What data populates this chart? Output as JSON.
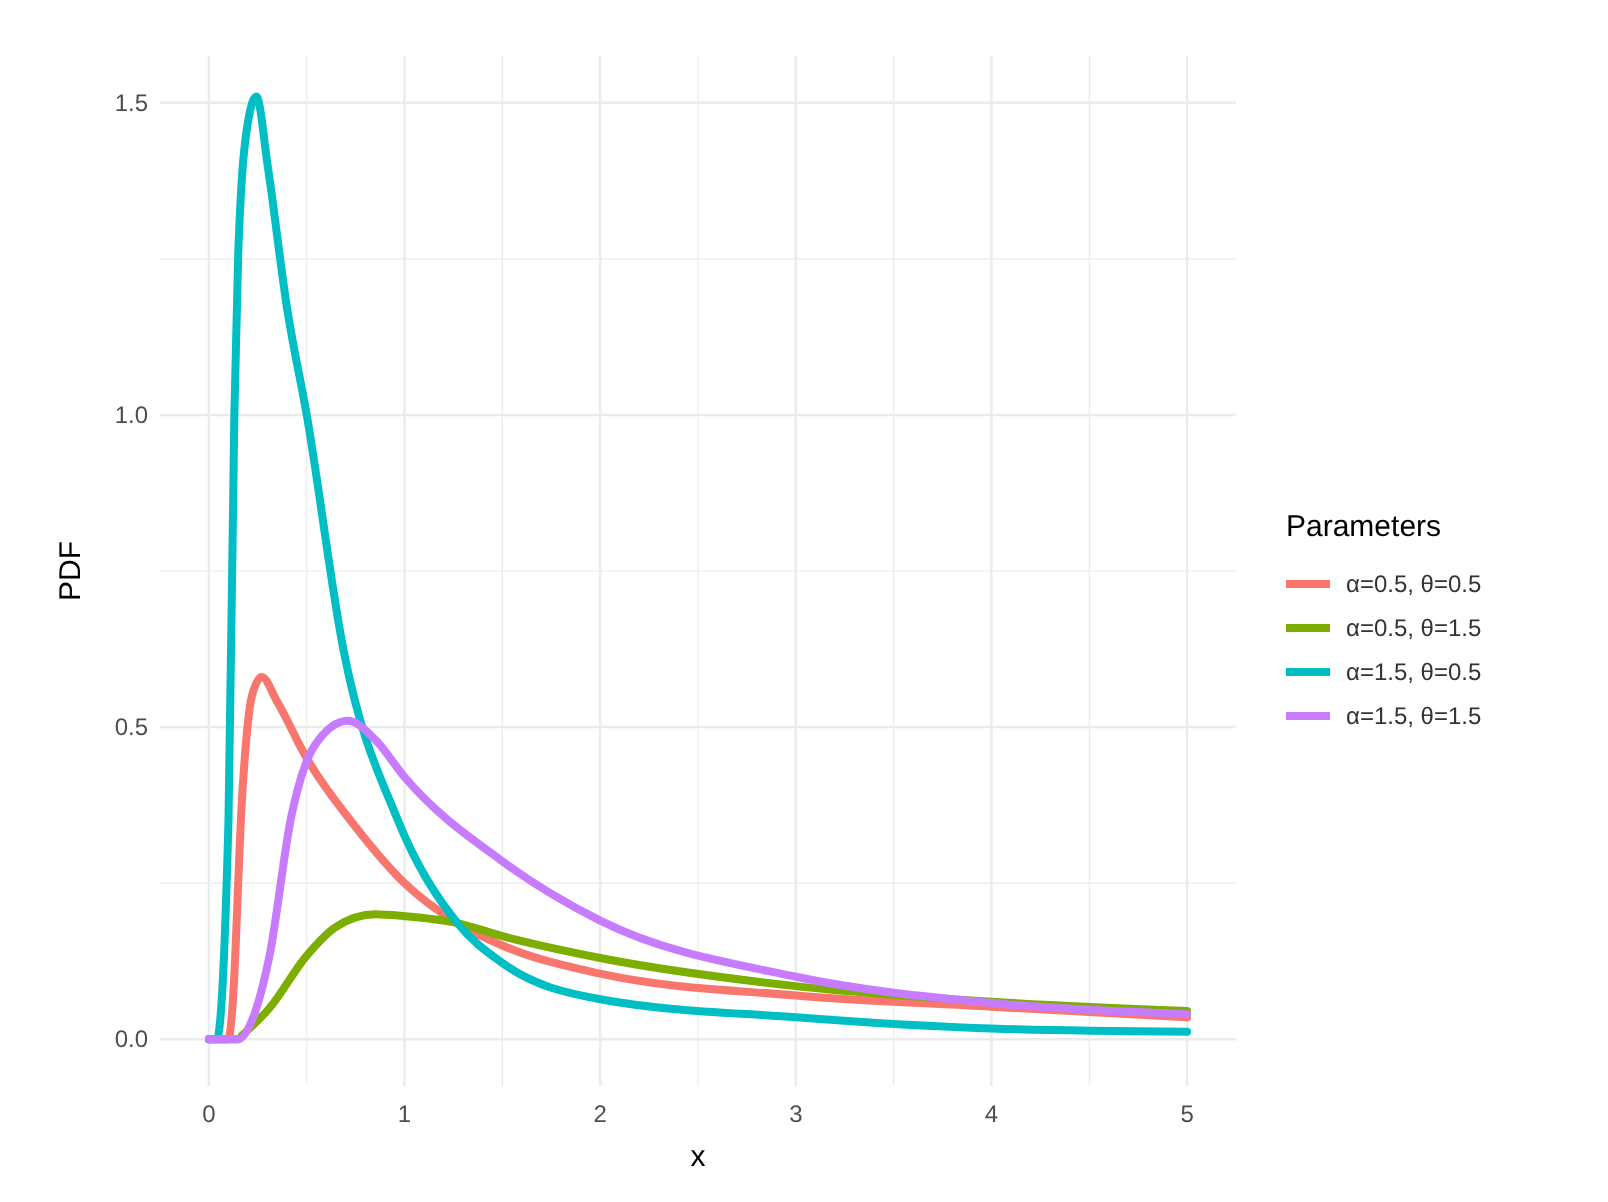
{
  "chart_data": {
    "type": "line",
    "xlabel": "x",
    "ylabel": "PDF",
    "legend_title": "Parameters",
    "legend": "right",
    "grid": true,
    "line_style": "solid",
    "marker": "none",
    "xlim": [
      -0.25,
      5.25
    ],
    "ylim": [
      -0.075,
      1.575
    ],
    "xticks": [
      0,
      {
        "value": 0.5,
        "label": null
      },
      1,
      {
        "value": 1.5,
        "label": null
      },
      2,
      {
        "value": 2.5,
        "label": null
      },
      3,
      {
        "value": 3.5,
        "label": null
      },
      4,
      {
        "value": 4.5,
        "label": null
      },
      5
    ],
    "yticks": [
      {
        "value": 0,
        "label": "0.0"
      },
      {
        "value": 0.25,
        "label": null
      },
      0.5,
      {
        "value": 0.75,
        "label": null
      },
      {
        "value": 1,
        "label": "1.0"
      },
      {
        "value": 1.25,
        "label": null
      },
      1.5
    ],
    "series": [
      {
        "name": "α=0.5, θ=0.5",
        "color": "#f8766d",
        "x": [
          0,
          0.1,
          0.12,
          0.17,
          0.22,
          0.27,
          0.35,
          0.5,
          0.75,
          1,
          1.27,
          1.5,
          2,
          3,
          4,
          5
        ],
        "values": [
          0,
          0,
          0.05,
          0.39,
          0.55,
          0.58,
          0.54,
          0.45,
          0.34,
          0.25,
          0.186,
          0.15,
          0.105,
          0.07,
          0.052,
          0.035
        ]
      },
      {
        "name": "α=0.5, θ=1.5",
        "color": "#7cae00",
        "x": [
          0,
          0.15,
          0.17,
          0.31,
          0.5,
          0.65,
          0.85,
          1,
          1.27,
          1.5,
          2,
          3,
          4,
          5
        ],
        "values": [
          0,
          0,
          0.006,
          0.05,
          0.134,
          0.18,
          0.2,
          0.197,
          0.186,
          0.165,
          0.13,
          0.085,
          0.06,
          0.045
        ]
      },
      {
        "name": "α=1.5, θ=0.5",
        "color": "#00bfc4",
        "x": [
          0,
          0.04,
          0.1,
          0.13,
          0.15,
          0.2,
          0.243,
          0.3,
          0.4,
          0.5,
          0.69,
          0.96,
          1.27,
          1.5,
          2,
          3,
          4,
          5
        ],
        "values": [
          0,
          0,
          0.35,
          1,
          1.26,
          1.47,
          1.51,
          1.4,
          1.17,
          1,
          0.62,
          0.355,
          0.186,
          0.122,
          0.064,
          0.035,
          0.017,
          0.012
        ]
      },
      {
        "name": "α=1.5, θ=1.5",
        "color": "#c77cff",
        "x": [
          0,
          0.15,
          0.22,
          0.31,
          0.42,
          0.54,
          0.71,
          0.85,
          1,
          1.5,
          2,
          3,
          4,
          5
        ],
        "values": [
          0,
          0,
          0.03,
          0.134,
          0.355,
          0.47,
          0.51,
          0.48,
          0.42,
          0.285,
          0.19,
          0.1,
          0.058,
          0.04
        ]
      }
    ]
  }
}
